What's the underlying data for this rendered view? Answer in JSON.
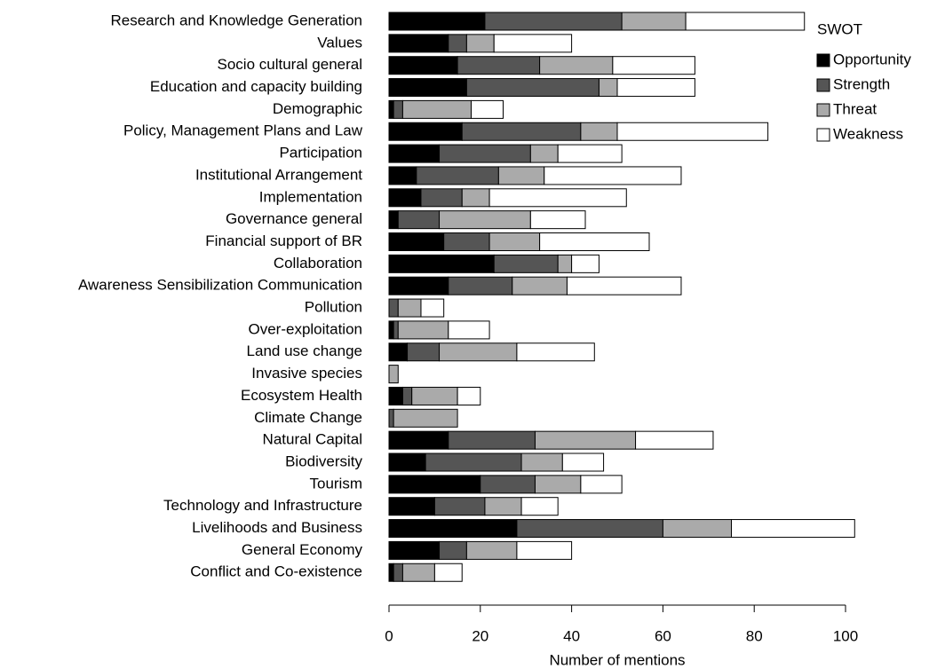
{
  "chart_data": {
    "type": "stacked_barh",
    "categories": [
      "Research and Knowledge Generation",
      "Values",
      "Socio cultural general",
      "Education and capacity building",
      "Demographic",
      "Policy, Management Plans and Law",
      "Participation",
      "Institutional Arrangement",
      "Implementation",
      "Governance general",
      "Financial support of BR",
      "Collaboration",
      "Awareness Sensibilization Communication",
      "Pollution",
      "Over-exploitation",
      "Land use change",
      "Invasive species",
      "Ecosystem Health",
      "Climate Change",
      "Natural Capital",
      "Biodiversity",
      "Tourism",
      "Technology and Infrastructure",
      "Livelihoods and Business",
      "General Economy",
      "Conflict and Co-existence"
    ],
    "series": [
      {
        "name": "Opportunity",
        "color": "#000000",
        "values": [
          21,
          13,
          15,
          17,
          1,
          16,
          11,
          6,
          7,
          2,
          12,
          23,
          13,
          0,
          1,
          4,
          0,
          3,
          0,
          13,
          8,
          20,
          10,
          28,
          11,
          1
        ]
      },
      {
        "name": "Strength",
        "color": "#555555",
        "values": [
          30,
          4,
          18,
          29,
          2,
          26,
          20,
          18,
          9,
          9,
          10,
          14,
          14,
          2,
          1,
          7,
          0,
          2,
          1,
          19,
          21,
          12,
          11,
          32,
          6,
          2
        ]
      },
      {
        "name": "Threat",
        "color": "#aaaaaa",
        "values": [
          14,
          6,
          16,
          4,
          15,
          8,
          6,
          10,
          6,
          20,
          11,
          3,
          12,
          5,
          11,
          17,
          2,
          10,
          14,
          22,
          9,
          10,
          8,
          15,
          11,
          7
        ]
      },
      {
        "name": "Weakness",
        "color": "#ffffff",
        "values": [
          26,
          17,
          18,
          17,
          7,
          33,
          14,
          30,
          30,
          12,
          24,
          6,
          25,
          5,
          9,
          17,
          0,
          5,
          0,
          17,
          9,
          9,
          8,
          27,
          12,
          6
        ]
      }
    ],
    "xlabel": "Number of mentions",
    "xlim": [
      0,
      100
    ],
    "xticks": [
      0,
      20,
      40,
      60,
      80,
      100
    ],
    "legend_title": "SWOT",
    "legend": "right"
  }
}
